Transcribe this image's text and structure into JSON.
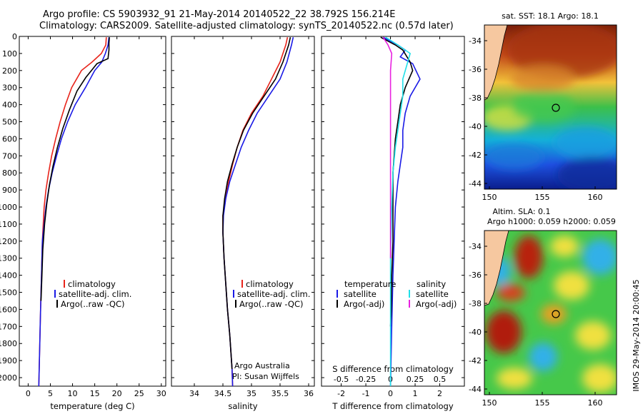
{
  "header": {
    "line1": "Argo profile: CS 5903932_91 21-May-2014 20140522_22 38.792S 156.214E",
    "line2": "Climatology: CARS2009. Satellite-adjusted climatology: synTS_20140522.nc (0.57d later)"
  },
  "colors": {
    "climatology": "#e8241b",
    "satellite": "#1a1ae6",
    "argo": "#000000",
    "sat_s": "#22e0e8",
    "argo_s": "#e822e0"
  },
  "chart_data": [
    {
      "id": "temperature",
      "type": "line",
      "xlabel": "temperature (deg C)",
      "xlim": [
        -2,
        31
      ],
      "ylim": [
        0,
        2050
      ],
      "xticks": [
        0,
        5,
        10,
        15,
        20,
        25,
        30
      ],
      "yticks": [
        0,
        100,
        200,
        300,
        400,
        500,
        600,
        700,
        800,
        900,
        1000,
        1100,
        1200,
        1300,
        1400,
        1500,
        1600,
        1700,
        1800,
        1900,
        2000
      ],
      "legend": [
        "climatology",
        "satellite-adj. clim.",
        "Argo(..raw -QC)"
      ],
      "series": [
        {
          "name": "climatology",
          "color": "climatology",
          "x": [
            17.6,
            17.5,
            16.5,
            14.4,
            12.0,
            9.8,
            8.4,
            7.2,
            6.2,
            5.3,
            4.6,
            4.0,
            3.6,
            3.2,
            3.0,
            2.8,
            2.4
          ],
          "y": [
            5,
            50,
            100,
            150,
            200,
            300,
            400,
            500,
            600,
            700,
            800,
            900,
            1000,
            1200,
            1400,
            1600,
            2050
          ]
        },
        {
          "name": "satellite-adj. clim.",
          "color": "satellite",
          "x": [
            18.2,
            18.0,
            17.4,
            16.6,
            15.0,
            12.9,
            10.6,
            8.9,
            7.5,
            6.4,
            5.4,
            4.6,
            4.0,
            3.6,
            3.2,
            3.0,
            2.8,
            2.4
          ],
          "y": [
            5,
            50,
            100,
            150,
            200,
            300,
            400,
            500,
            600,
            700,
            800,
            900,
            1000,
            1100,
            1200,
            1400,
            1600,
            2050
          ]
        },
        {
          "name": "Argo(..raw -QC)",
          "color": "argo",
          "x": [
            18.3,
            18.2,
            18.2,
            18.0,
            15.5,
            13.0,
            11.0,
            9.3,
            7.8,
            6.6,
            5.6,
            4.8,
            4.2,
            3.7,
            3.3,
            3.1,
            2.9
          ],
          "y": [
            5,
            40,
            80,
            130,
            160,
            240,
            320,
            430,
            540,
            650,
            760,
            870,
            980,
            1100,
            1250,
            1400,
            1550
          ]
        }
      ]
    },
    {
      "id": "salinity",
      "type": "line",
      "xlabel": "salinity",
      "xlim": [
        33.6,
        36.1
      ],
      "ylim": [
        0,
        2050
      ],
      "xticks": [
        34,
        34.5,
        35,
        35.5,
        36
      ],
      "legend": [
        "climatology",
        "satellite-adj. clim.",
        "Argo(..raw -QC)"
      ],
      "annotation": [
        "Argo Australia",
        "PI: Susan Wijffels"
      ],
      "series": [
        {
          "name": "climatology",
          "color": "climatology",
          "x": [
            35.63,
            35.6,
            35.5,
            35.35,
            35.2,
            35.0,
            34.85,
            34.75,
            34.67,
            34.6,
            34.55,
            34.5,
            34.5,
            34.52,
            34.55,
            34.58,
            34.62,
            34.64,
            34.66,
            34.67
          ],
          "y": [
            5,
            50,
            150,
            250,
            350,
            450,
            550,
            650,
            750,
            850,
            950,
            1050,
            1150,
            1300,
            1450,
            1600,
            1750,
            1850,
            1950,
            2050
          ]
        },
        {
          "name": "satellite-adj. clim.",
          "color": "satellite",
          "x": [
            35.73,
            35.7,
            35.62,
            35.5,
            35.3,
            35.1,
            34.95,
            34.82,
            34.72,
            34.62,
            34.55,
            34.51,
            34.5,
            34.52,
            34.55,
            34.58,
            34.62,
            34.64,
            34.66,
            34.67
          ],
          "y": [
            5,
            50,
            150,
            250,
            350,
            450,
            550,
            650,
            750,
            850,
            950,
            1050,
            1150,
            1300,
            1450,
            1600,
            1750,
            1850,
            1950,
            2050
          ]
        },
        {
          "name": "Argo(..raw -QC)",
          "color": "argo",
          "x": [
            35.68,
            35.65,
            35.55,
            35.42,
            35.22,
            35.02,
            34.86,
            34.75,
            34.66,
            34.58,
            34.53,
            34.5,
            34.5,
            34.52,
            34.55,
            34.58,
            34.62,
            34.64,
            34.66
          ],
          "y": [
            5,
            50,
            150,
            250,
            350,
            450,
            550,
            650,
            750,
            850,
            950,
            1050,
            1150,
            1300,
            1450,
            1600,
            1750,
            1850,
            1950
          ]
        }
      ]
    },
    {
      "id": "difference",
      "type": "line",
      "xlabel": "T difference from climatology",
      "xlabel_top": "S difference from climatology",
      "xlim": [
        -2.8,
        3.0
      ],
      "ylim": [
        0,
        2050
      ],
      "xticks": [
        -2,
        -1,
        0,
        1,
        2
      ],
      "xticks_top": [
        "-0.5",
        "-0.25",
        "0",
        "0.25",
        "0.5"
      ],
      "xticks_top_pos": [
        -2,
        -1,
        0,
        1,
        2
      ],
      "legend_t_title": "temperature",
      "legend_s_title": "salinity",
      "legend_t": [
        "satellite",
        "Argo(-adj)"
      ],
      "legend_s": [
        "satellite",
        "Argo(-adj)"
      ],
      "series": [
        {
          "name": "T satellite",
          "color": "satellite",
          "x": [
            -0.3,
            0.3,
            0.6,
            0.4,
            0.9,
            1.2,
            0.8,
            0.6,
            0.5,
            0.5,
            0.4,
            0.3,
            0.2,
            0.15,
            0.1,
            0.05,
            0.0
          ],
          "y": [
            5,
            50,
            80,
            120,
            160,
            250,
            350,
            450,
            550,
            650,
            750,
            850,
            1000,
            1200,
            1400,
            1700,
            2050
          ]
        },
        {
          "name": "T Argo(-adj)",
          "color": "argo",
          "x": [
            -0.4,
            0.2,
            0.5,
            0.8,
            0.9,
            0.6,
            0.4,
            0.3,
            0.2,
            0.15,
            0.1,
            0.1,
            0.1,
            0.1,
            0.05,
            0.03,
            0.0
          ],
          "y": [
            5,
            50,
            80,
            150,
            200,
            300,
            400,
            500,
            600,
            700,
            800,
            900,
            1000,
            1200,
            1400,
            1600,
            1700
          ]
        },
        {
          "name": "S satellite",
          "color": "sat_s",
          "x": [
            -0.2,
            0.3,
            0.8,
            0.7,
            0.5,
            0.5,
            0.4,
            0.3,
            0.2,
            0.1,
            0.05,
            0.0,
            0.0
          ],
          "y": [
            5,
            50,
            100,
            150,
            250,
            350,
            450,
            550,
            650,
            800,
            1000,
            1300,
            2050
          ]
        },
        {
          "name": "S Argo(-adj)",
          "color": "argo_s",
          "x": [
            -0.3,
            -0.1,
            0.05,
            0.0,
            0.0,
            0.0,
            0.0,
            0.0
          ],
          "y": [
            5,
            50,
            100,
            200,
            300,
            500,
            800,
            1300
          ]
        }
      ]
    }
  ],
  "maps": {
    "sst": {
      "title": "sat. SST: 18.1  Argo: 18.1",
      "yticks": [
        "-34",
        "-36",
        "-38",
        "-40",
        "-42",
        "-44"
      ],
      "xticks": [
        "150",
        "155",
        "160"
      ]
    },
    "sla": {
      "title1": "Altim. SLA: 0.1",
      "title2": "Argo h1000: 0.059 h2000: 0.059",
      "yticks": [
        "-34",
        "-36",
        "-38",
        "-40",
        "-42",
        "-44"
      ],
      "xticks": [
        "150",
        "155",
        "160"
      ],
      "side_label": "IMOS 29-May-2014 20:00:45"
    }
  }
}
